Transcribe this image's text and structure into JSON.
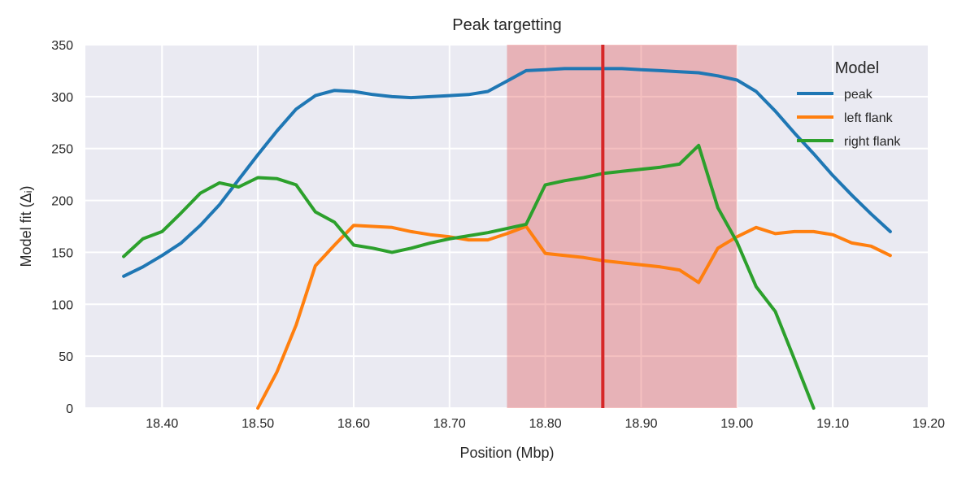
{
  "chart_data": {
    "type": "line",
    "title": "Peak targetting",
    "xlabel": "Position (Mbp)",
    "ylabel": "Model fit (Δᵢ)",
    "xlim": [
      18.32,
      19.2
    ],
    "ylim": [
      0,
      350
    ],
    "xticks": [
      "18.40",
      "18.50",
      "18.60",
      "18.70",
      "18.80",
      "18.90",
      "19.00",
      "19.10",
      "19.20"
    ],
    "xtick_values": [
      18.4,
      18.5,
      18.6,
      18.7,
      18.8,
      18.9,
      19.0,
      19.1,
      19.2
    ],
    "yticks": [
      "0",
      "50",
      "100",
      "150",
      "200",
      "250",
      "300",
      "350"
    ],
    "ytick_values": [
      0,
      50,
      100,
      150,
      200,
      250,
      300,
      350
    ],
    "grid": true,
    "legend": {
      "title": "Model",
      "position": "top-right"
    },
    "region": {
      "x_start": 18.76,
      "x_end": 19.0,
      "color": "#e24a4a"
    },
    "vline": {
      "x": 18.86,
      "color": "#d62728"
    },
    "series": [
      {
        "name": "peak",
        "color": "#1f77b4",
        "x": [
          18.36,
          18.38,
          18.4,
          18.42,
          18.44,
          18.46,
          18.48,
          18.5,
          18.52,
          18.54,
          18.56,
          18.58,
          18.6,
          18.62,
          18.64,
          18.66,
          18.68,
          18.7,
          18.72,
          18.74,
          18.76,
          18.78,
          18.8,
          18.82,
          18.84,
          18.86,
          18.88,
          18.9,
          18.92,
          18.94,
          18.96,
          18.98,
          19.0,
          19.02,
          19.04,
          19.06,
          19.08,
          19.1,
          19.12,
          19.14,
          19.16
        ],
        "y": [
          127,
          136,
          147,
          159,
          176,
          196,
          220,
          244,
          267,
          288,
          301,
          306,
          305,
          302,
          300,
          299,
          300,
          301,
          302,
          305,
          315,
          325,
          326,
          327,
          327,
          327,
          327,
          326,
          325,
          324,
          323,
          320,
          316,
          305,
          286,
          265,
          245,
          224,
          205,
          187,
          170
        ]
      },
      {
        "name": "left flank",
        "color": "#ff7f0e",
        "x": [
          18.5,
          18.52,
          18.54,
          18.56,
          18.58,
          18.6,
          18.62,
          18.64,
          18.66,
          18.68,
          18.7,
          18.72,
          18.74,
          18.76,
          18.78,
          18.8,
          18.82,
          18.84,
          18.86,
          18.88,
          18.9,
          18.92,
          18.94,
          18.96,
          18.98,
          19.0,
          19.02,
          19.04,
          19.06,
          19.08,
          19.1,
          19.12,
          19.14,
          19.16
        ],
        "y": [
          0,
          35,
          80,
          137,
          157,
          176,
          175,
          174,
          170,
          167,
          165,
          162,
          162,
          168,
          175,
          149,
          147,
          145,
          142,
          140,
          138,
          136,
          133,
          121,
          154,
          165,
          174,
          168,
          170,
          170,
          167,
          159,
          156,
          147
        ]
      },
      {
        "name": "right flank",
        "color": "#2ca02c",
        "x": [
          18.36,
          18.38,
          18.4,
          18.42,
          18.44,
          18.46,
          18.48,
          18.5,
          18.52,
          18.54,
          18.56,
          18.58,
          18.6,
          18.62,
          18.64,
          18.66,
          18.68,
          18.7,
          18.72,
          18.74,
          18.76,
          18.78,
          18.8,
          18.82,
          18.84,
          18.86,
          18.88,
          18.9,
          18.92,
          18.94,
          18.96,
          18.98,
          19.0,
          19.02,
          19.04,
          19.06,
          19.08
        ],
        "y": [
          146,
          163,
          170,
          188,
          207,
          217,
          213,
          222,
          221,
          215,
          189,
          179,
          157,
          154,
          150,
          154,
          159,
          163,
          166,
          169,
          173,
          177,
          215,
          219,
          222,
          226,
          228,
          230,
          232,
          235,
          253,
          193,
          160,
          117,
          93,
          47,
          0
        ]
      }
    ]
  }
}
